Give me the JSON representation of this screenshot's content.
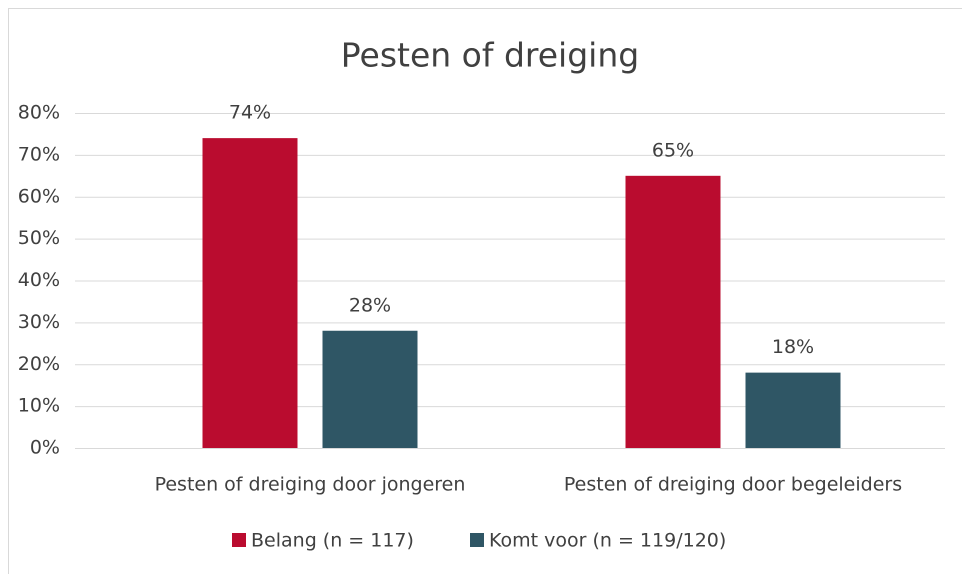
{
  "chart_data": {
    "type": "bar",
    "title": "Pesten of dreiging",
    "categories": [
      "Pesten of dreiging door jongeren",
      "Pesten of dreiging door begeleiders"
    ],
    "series": [
      {
        "name": "Belang (n = 117)",
        "color": "#ba0c2f",
        "values": [
          74,
          65
        ],
        "value_labels": [
          "74%",
          "65%"
        ]
      },
      {
        "name": "Komt voor (n = 119/120)",
        "color": "#2f5665",
        "values": [
          28,
          18
        ],
        "value_labels": [
          "28%",
          "18%"
        ]
      }
    ],
    "ylim": [
      0,
      80
    ],
    "yticks": [
      {
        "value": 0,
        "label": "0%"
      },
      {
        "value": 10,
        "label": "10%"
      },
      {
        "value": 20,
        "label": "20%"
      },
      {
        "value": 30,
        "label": "30%"
      },
      {
        "value": 40,
        "label": "40%"
      },
      {
        "value": 50,
        "label": "50%"
      },
      {
        "value": 60,
        "label": "60%"
      },
      {
        "value": 70,
        "label": "70%"
      },
      {
        "value": 80,
        "label": "80%"
      }
    ],
    "grid": true,
    "legend": "bottom"
  }
}
